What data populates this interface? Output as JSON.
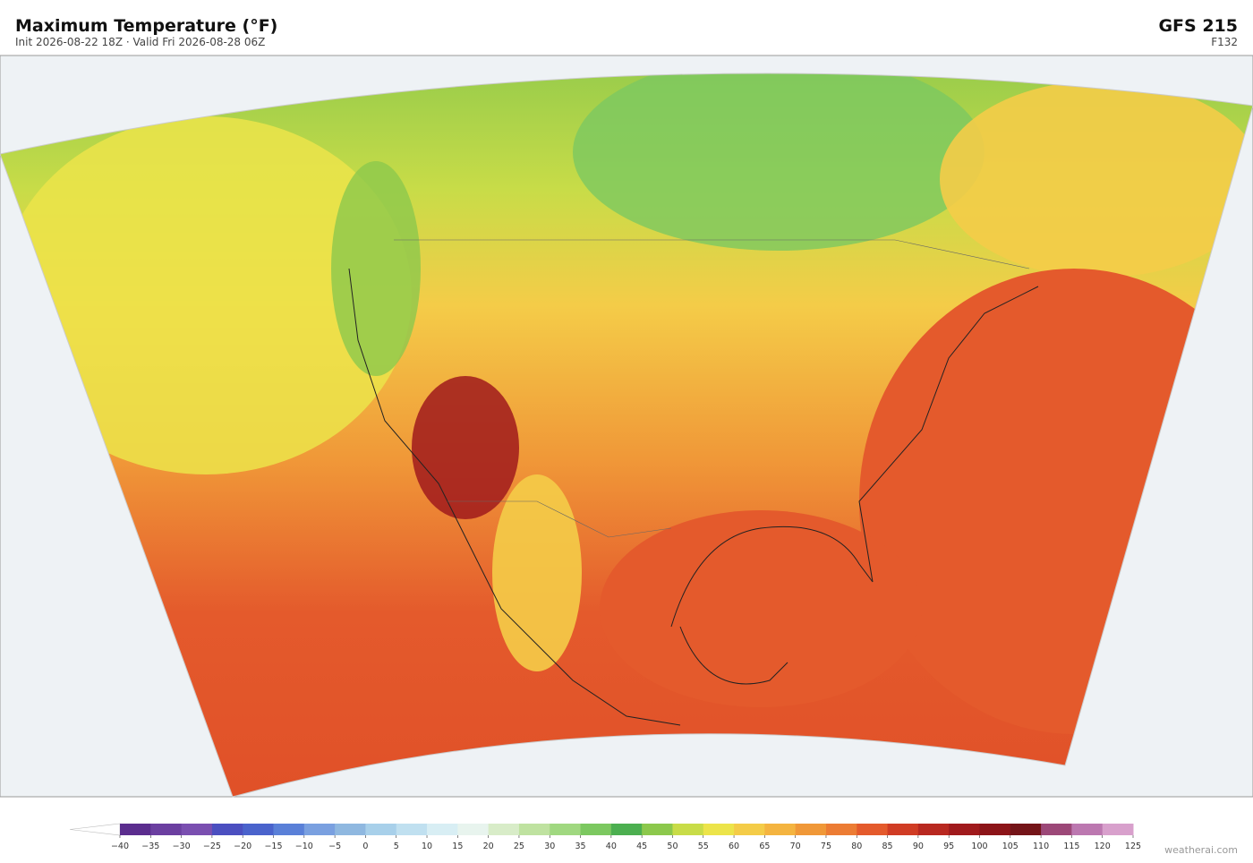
{
  "header": {
    "title": "Maximum Temperature  (°F)",
    "subtitle": "Init 2026-08-22 18Z  ·  Valid Fri 2026-08-28 06Z",
    "model": "GFS  215",
    "forecast_hour": "F132"
  },
  "colorbar": {
    "ticks": [
      {
        "value": -40,
        "label": "−40"
      },
      {
        "value": -35,
        "label": "−35"
      },
      {
        "value": -30,
        "label": "−30"
      },
      {
        "value": -25,
        "label": "−25"
      },
      {
        "value": -20,
        "label": "−20"
      },
      {
        "value": -15,
        "label": "−15"
      },
      {
        "value": -10,
        "label": "−10"
      },
      {
        "value": -5,
        "label": "−5"
      },
      0,
      5,
      10,
      15,
      20,
      25,
      30,
      35,
      40,
      45,
      50,
      55,
      60,
      65,
      70,
      75,
      80,
      85,
      90,
      95,
      100,
      105,
      110,
      115,
      120,
      125
    ],
    "colors": [
      "#5b2d8e",
      "#6b3fa0",
      "#7a4fb0",
      "#4b4fc0",
      "#4a63cc",
      "#5a80d8",
      "#7aa0e0",
      "#8fb8e0",
      "#a8d0ea",
      "#c0e0f0",
      "#d8eef4",
      "#e8f4ee",
      "#d8ecc8",
      "#bfe2a0",
      "#a0d880",
      "#7cc860",
      "#4caf50",
      "#8cc84c",
      "#c8dc48",
      "#ece44a",
      "#f4cc48",
      "#f4b440",
      "#f09838",
      "#ec7c34",
      "#e45a2c",
      "#d03c24",
      "#b82820",
      "#a01a1c",
      "#8c1418",
      "#741418",
      "#9c4878",
      "#bc78b0",
      "#d8a0cc"
    ]
  },
  "footer": {
    "watermark": "weatherai.com"
  }
}
